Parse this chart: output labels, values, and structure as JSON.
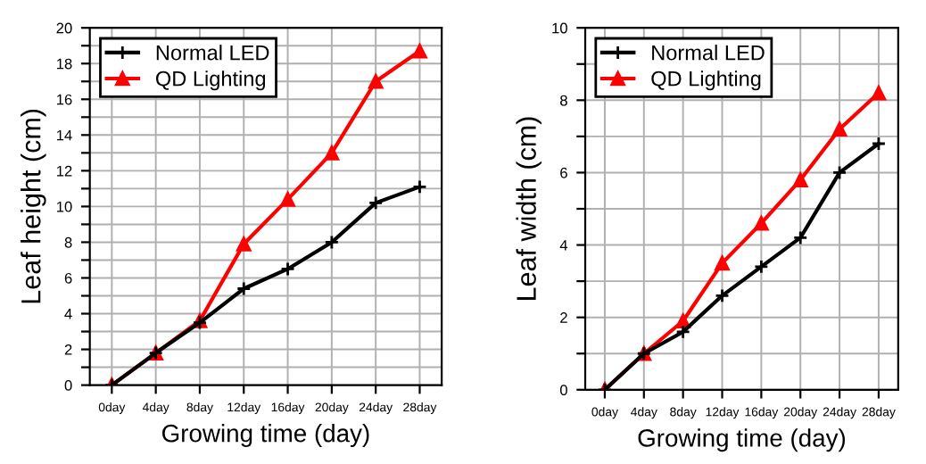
{
  "chart_data": [
    {
      "type": "line",
      "xlabel": "Growing time (day)",
      "ylabel": "Leaf height (cm)",
      "categories": [
        "0day",
        "4day",
        "8day",
        "12day",
        "16day",
        "20day",
        "24day",
        "28day"
      ],
      "series": [
        {
          "name": "Normal LED",
          "color": "#000000",
          "marker": "cross",
          "values": [
            0,
            1.8,
            3.5,
            5.4,
            6.5,
            8,
            10.2,
            11.1
          ]
        },
        {
          "name": "QD Lighting",
          "color": "#ff0000",
          "marker": "triangle",
          "values": [
            0,
            1.8,
            3.6,
            7.9,
            10.4,
            13,
            17,
            18.7
          ]
        }
      ],
      "ylim": [
        0,
        20
      ],
      "yticks": [
        0,
        {
          "value": 1,
          "label": null
        },
        2,
        {
          "value": 3,
          "label": null
        },
        4,
        {
          "value": 5,
          "label": null
        },
        6,
        {
          "value": 7,
          "label": null
        },
        8,
        {
          "value": 9,
          "label": null
        },
        10,
        {
          "value": 11,
          "label": null
        },
        12,
        {
          "value": 13,
          "label": null
        },
        14,
        {
          "value": 15,
          "label": null
        },
        16,
        {
          "value": 17,
          "label": null
        },
        18,
        {
          "value": 19,
          "label": null
        },
        20
      ],
      "grid": true,
      "legend": "top left"
    },
    {
      "type": "line",
      "xlabel": "Growing time (day)",
      "ylabel": "Leaf width (cm)",
      "categories": [
        "0day",
        "4day",
        "8day",
        "12day",
        "16day",
        "20day",
        "24day",
        "28day"
      ],
      "series": [
        {
          "name": "Normal LED",
          "color": "#000000",
          "marker": "cross",
          "values": [
            0,
            1.0,
            1.6,
            2.6,
            3.4,
            4.2,
            6.0,
            6.8
          ]
        },
        {
          "name": "QD Lighting",
          "color": "#ff0000",
          "marker": "triangle",
          "values": [
            0,
            1.0,
            1.9,
            3.5,
            4.6,
            5.8,
            7.2,
            8.2
          ]
        }
      ],
      "ylim": [
        0,
        10
      ],
      "yticks": [
        0,
        {
          "value": 1,
          "label": null
        },
        2,
        {
          "value": 3,
          "label": null
        },
        4,
        {
          "value": 5,
          "label": null
        },
        6,
        {
          "value": 7,
          "label": null
        },
        8,
        {
          "value": 9,
          "label": null
        },
        10
      ],
      "grid": true,
      "legend": "top left"
    }
  ]
}
